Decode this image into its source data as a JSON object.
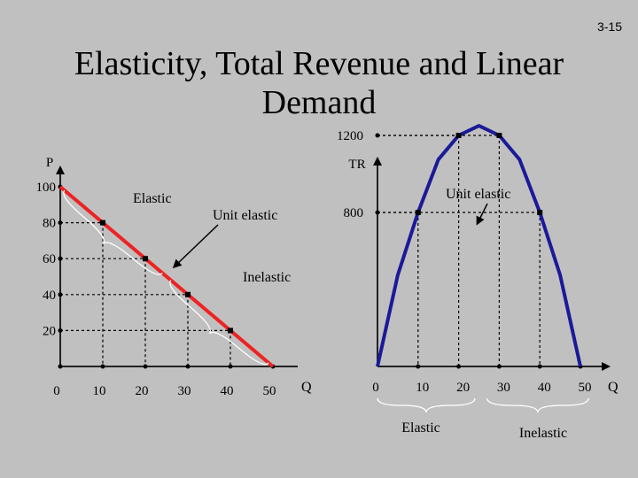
{
  "slide": {
    "number": "3-15",
    "title": "Elasticity, Total Revenue and Linear Demand"
  },
  "colors": {
    "background": "#c0c0c0",
    "demand_line": "#ee2222",
    "tr_curve": "#1a1a99",
    "axis": "#222222",
    "guide": "#000000"
  },
  "chart_data": [
    {
      "type": "line",
      "name": "demand",
      "ylabel": "P",
      "xlabel": "Q",
      "x_ticks": [
        0,
        10,
        20,
        30,
        40,
        50
      ],
      "y_ticks": [
        20,
        40,
        60,
        80,
        100
      ],
      "xlim": [
        0,
        56
      ],
      "ylim": [
        0,
        104
      ],
      "series": [
        {
          "points": [
            [
              0,
              100
            ],
            [
              10,
              80
            ],
            [
              20,
              60
            ],
            [
              30,
              40
            ],
            [
              40,
              20
            ],
            [
              50,
              0
            ]
          ]
        }
      ],
      "markers": [
        [
          10,
          80
        ],
        [
          20,
          60
        ],
        [
          30,
          40
        ],
        [
          40,
          20
        ]
      ],
      "annotations": {
        "elastic": "Elastic",
        "unit_elastic": "Unit elastic",
        "inelastic": "Inelastic"
      }
    },
    {
      "type": "line",
      "name": "total-revenue",
      "ylabel": "TR",
      "xlabel": "Q",
      "x_ticks": [
        0,
        10,
        20,
        30,
        40,
        50
      ],
      "y_ticks": [
        800,
        1200
      ],
      "xlim": [
        0,
        56
      ],
      "series": [
        {
          "points": [
            [
              0,
              0
            ],
            [
              5,
              475
            ],
            [
              10,
              800
            ],
            [
              15,
              1075
            ],
            [
              20,
              1200
            ],
            [
              25,
              1250
            ],
            [
              30,
              1200
            ],
            [
              35,
              1075
            ],
            [
              40,
              800
            ],
            [
              45,
              475
            ],
            [
              50,
              0
            ]
          ]
        }
      ],
      "markers": [
        [
          10,
          800
        ],
        [
          20,
          1200
        ],
        [
          30,
          1200
        ],
        [
          40,
          800
        ]
      ],
      "annotations": {
        "unit_elastic": "Unit elastic",
        "elastic": "Elastic",
        "inelastic": "Inelastic"
      }
    }
  ]
}
